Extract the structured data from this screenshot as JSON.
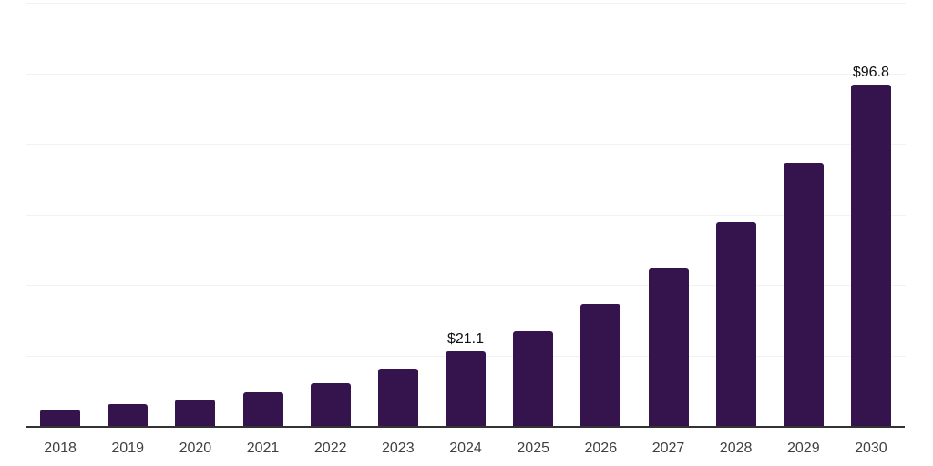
{
  "chart_data": {
    "type": "bar",
    "title": "",
    "xlabel": "",
    "ylabel": "",
    "categories": [
      "2018",
      "2019",
      "2020",
      "2021",
      "2022",
      "2023",
      "2024",
      "2025",
      "2026",
      "2027",
      "2028",
      "2029",
      "2030"
    ],
    "values": [
      4.6,
      6.1,
      7.4,
      9.6,
      12.2,
      16.2,
      21.1,
      26.8,
      34.5,
      44.6,
      57.7,
      74.7,
      96.8
    ],
    "data_labels": [
      {
        "index": 6,
        "text": "$21.1"
      },
      {
        "index": 12,
        "text": "$96.8"
      }
    ],
    "ylim": [
      0,
      120
    ],
    "gridline_interval": 20,
    "grid": true,
    "legend": false,
    "y_axis_labels_visible": false
  },
  "colors": {
    "bar": "#35134d",
    "axis_line": "#333333",
    "gridline": "#f2f1f3",
    "tick_label": "#404040",
    "data_label": "#111111",
    "background": "#ffffff"
  }
}
